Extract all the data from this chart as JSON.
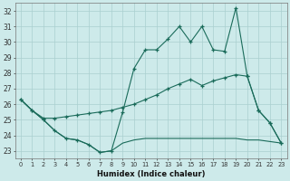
{
  "xlabel": "Humidex (Indice chaleur)",
  "bg_color": "#cdeaea",
  "grid_color": "#aacfcf",
  "line_color": "#1a6b5a",
  "xlim": [
    -0.5,
    23.5
  ],
  "ylim": [
    22.5,
    32.5
  ],
  "yticks": [
    23,
    24,
    25,
    26,
    27,
    28,
    29,
    30,
    31,
    32
  ],
  "xticks": [
    0,
    1,
    2,
    3,
    4,
    5,
    6,
    7,
    8,
    9,
    10,
    11,
    12,
    13,
    14,
    15,
    16,
    17,
    18,
    19,
    20,
    21,
    22,
    23
  ],
  "line1_x": [
    0,
    1,
    2,
    3,
    4,
    5,
    6,
    7,
    8,
    9,
    10,
    11,
    12,
    13,
    14,
    15,
    16,
    17,
    18,
    19,
    20,
    21,
    22,
    23
  ],
  "line1_y": [
    26.3,
    25.6,
    25.0,
    24.3,
    23.8,
    23.7,
    23.4,
    22.9,
    23.0,
    25.5,
    28.3,
    29.5,
    29.5,
    30.2,
    31.0,
    30.0,
    31.0,
    29.5,
    29.4,
    32.2,
    27.8,
    25.6,
    24.8,
    23.5
  ],
  "line2_x": [
    0,
    1,
    2,
    3,
    4,
    5,
    6,
    7,
    8,
    9,
    10,
    11,
    12,
    13,
    14,
    15,
    16,
    17,
    18,
    19,
    20,
    21,
    22,
    23
  ],
  "line2_y": [
    26.3,
    25.6,
    25.1,
    25.1,
    25.2,
    25.3,
    25.4,
    25.5,
    25.6,
    25.8,
    26.0,
    26.3,
    26.6,
    27.0,
    27.3,
    27.6,
    27.2,
    27.5,
    27.7,
    27.9,
    27.8,
    25.6,
    24.8,
    23.5
  ],
  "line3_x": [
    0,
    1,
    2,
    3,
    4,
    5,
    6,
    7,
    8,
    9,
    10,
    11,
    12,
    13,
    14,
    15,
    16,
    17,
    18,
    19,
    20,
    21,
    22,
    23
  ],
  "line3_y": [
    26.3,
    25.6,
    25.0,
    24.3,
    23.8,
    23.7,
    23.4,
    22.9,
    23.0,
    23.5,
    23.7,
    23.8,
    23.8,
    23.8,
    23.8,
    23.8,
    23.8,
    23.8,
    23.8,
    23.8,
    23.7,
    23.7,
    23.6,
    23.5
  ]
}
